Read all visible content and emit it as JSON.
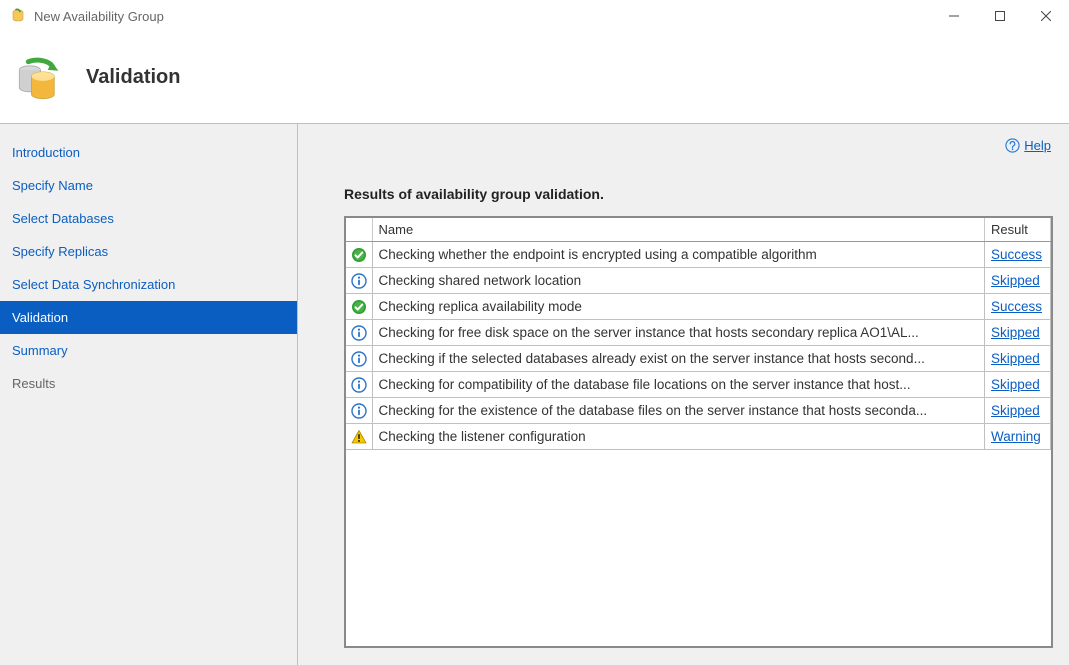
{
  "window_title": "New Availability Group",
  "banner_title": "Validation",
  "help_label": "Help",
  "sidebar": {
    "items": [
      {
        "label": "Introduction",
        "state": "link"
      },
      {
        "label": "Specify Name",
        "state": "link"
      },
      {
        "label": "Select Databases",
        "state": "link"
      },
      {
        "label": "Specify Replicas",
        "state": "link"
      },
      {
        "label": "Select Data Synchronization",
        "state": "link"
      },
      {
        "label": "Validation",
        "state": "active"
      },
      {
        "label": "Summary",
        "state": "link"
      },
      {
        "label": "Results",
        "state": "disabled"
      }
    ]
  },
  "main": {
    "heading": "Results of availability group validation.",
    "columns": {
      "icon": "",
      "name": "Name",
      "result": "Result"
    },
    "rows": [
      {
        "icon": "success",
        "name": "Checking whether the endpoint is encrypted using a compatible algorithm",
        "result": "Success"
      },
      {
        "icon": "info",
        "name": "Checking shared network location",
        "result": "Skipped"
      },
      {
        "icon": "success",
        "name": "Checking replica availability mode",
        "result": "Success"
      },
      {
        "icon": "info",
        "name": "Checking for free disk space on the server instance that hosts secondary replica AO1\\AL...",
        "result": "Skipped"
      },
      {
        "icon": "info",
        "name": "Checking if the selected databases already exist on the server instance that hosts second...",
        "result": "Skipped"
      },
      {
        "icon": "info",
        "name": "Checking for compatibility of the database file locations on the server instance that host...",
        "result": "Skipped"
      },
      {
        "icon": "info",
        "name": "Checking for the existence of the database files on the server instance that hosts seconda...",
        "result": "Skipped"
      },
      {
        "icon": "warning",
        "name": "Checking the listener configuration",
        "result": "Warning"
      }
    ]
  },
  "colors": {
    "link": "#0a5ec2",
    "sidebar_bg": "#f0f0f0",
    "active_bg": "#0a5ec2",
    "border": "#8a8a8a",
    "success": "#2fa12f",
    "info_stroke": "#2b74c7",
    "warning_fill": "#f7c600",
    "warning_stroke": "#b08a00"
  }
}
